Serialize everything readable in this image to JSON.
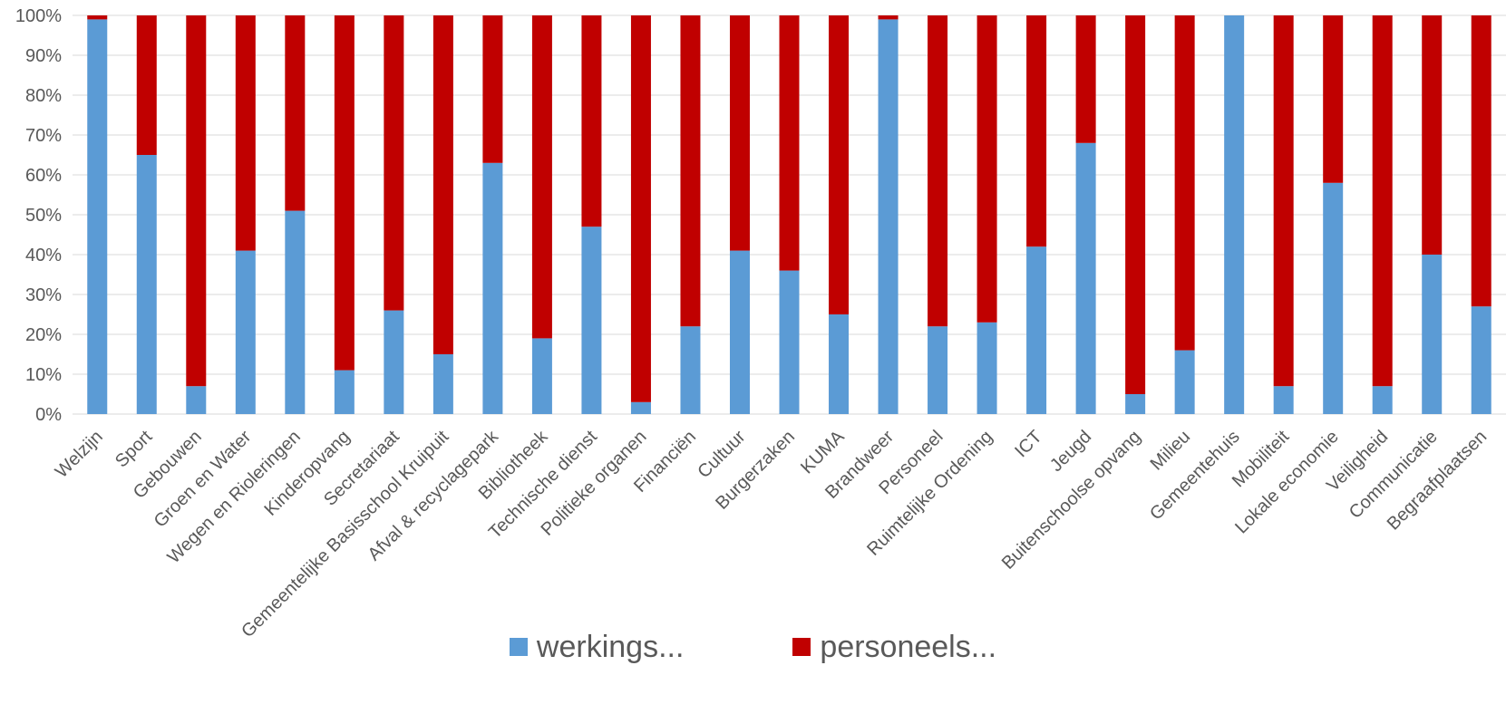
{
  "chart_data": {
    "type": "bar",
    "stacked": true,
    "percent_stacked": true,
    "categories": [
      "Welzijn",
      "Sport",
      "Gebouwen",
      "Groen en Water",
      "Wegen en Rioleringen",
      "Kinderopvang",
      "Secretariaat",
      "Gemeentelijke Basisschool Kruipuit",
      "Afval & recyclagepark",
      "Bibliotheek",
      "Technische dienst",
      "Politieke organen",
      "Financiën",
      "Cultuur",
      "Burgerzaken",
      "KUMA",
      "Brandweer",
      "Personeel",
      "Ruimtelijke Ordening",
      "ICT",
      "Jeugd",
      "Buitenschoolse opvang",
      "Milieu",
      "Gemeentehuis",
      "Mobiliteit",
      "Lokale economie",
      "Veiligheid",
      "Communicatie",
      "Begraafplaatsen"
    ],
    "series": [
      {
        "name": "werkings...",
        "color": "#5b9bd5",
        "values": [
          99,
          65,
          7,
          41,
          51,
          11,
          26,
          15,
          63,
          19,
          47,
          3,
          22,
          41,
          36,
          25,
          99,
          22,
          23,
          42,
          68,
          5,
          16,
          100,
          7,
          58,
          7,
          40,
          27
        ]
      },
      {
        "name": "personeels...",
        "color": "#c00000",
        "values": [
          1,
          35,
          93,
          59,
          49,
          89,
          74,
          85,
          37,
          81,
          53,
          97,
          78,
          59,
          64,
          75,
          1,
          78,
          77,
          58,
          32,
          95,
          84,
          0,
          93,
          42,
          93,
          60,
          73
        ]
      }
    ],
    "y_ticks": [
      "0%",
      "10%",
      "20%",
      "30%",
      "40%",
      "50%",
      "60%",
      "70%",
      "80%",
      "90%",
      "100%"
    ],
    "ylim": [
      0,
      100
    ],
    "grid": true,
    "legend_position": "bottom",
    "title": "",
    "xlabel": "",
    "ylabel": ""
  }
}
